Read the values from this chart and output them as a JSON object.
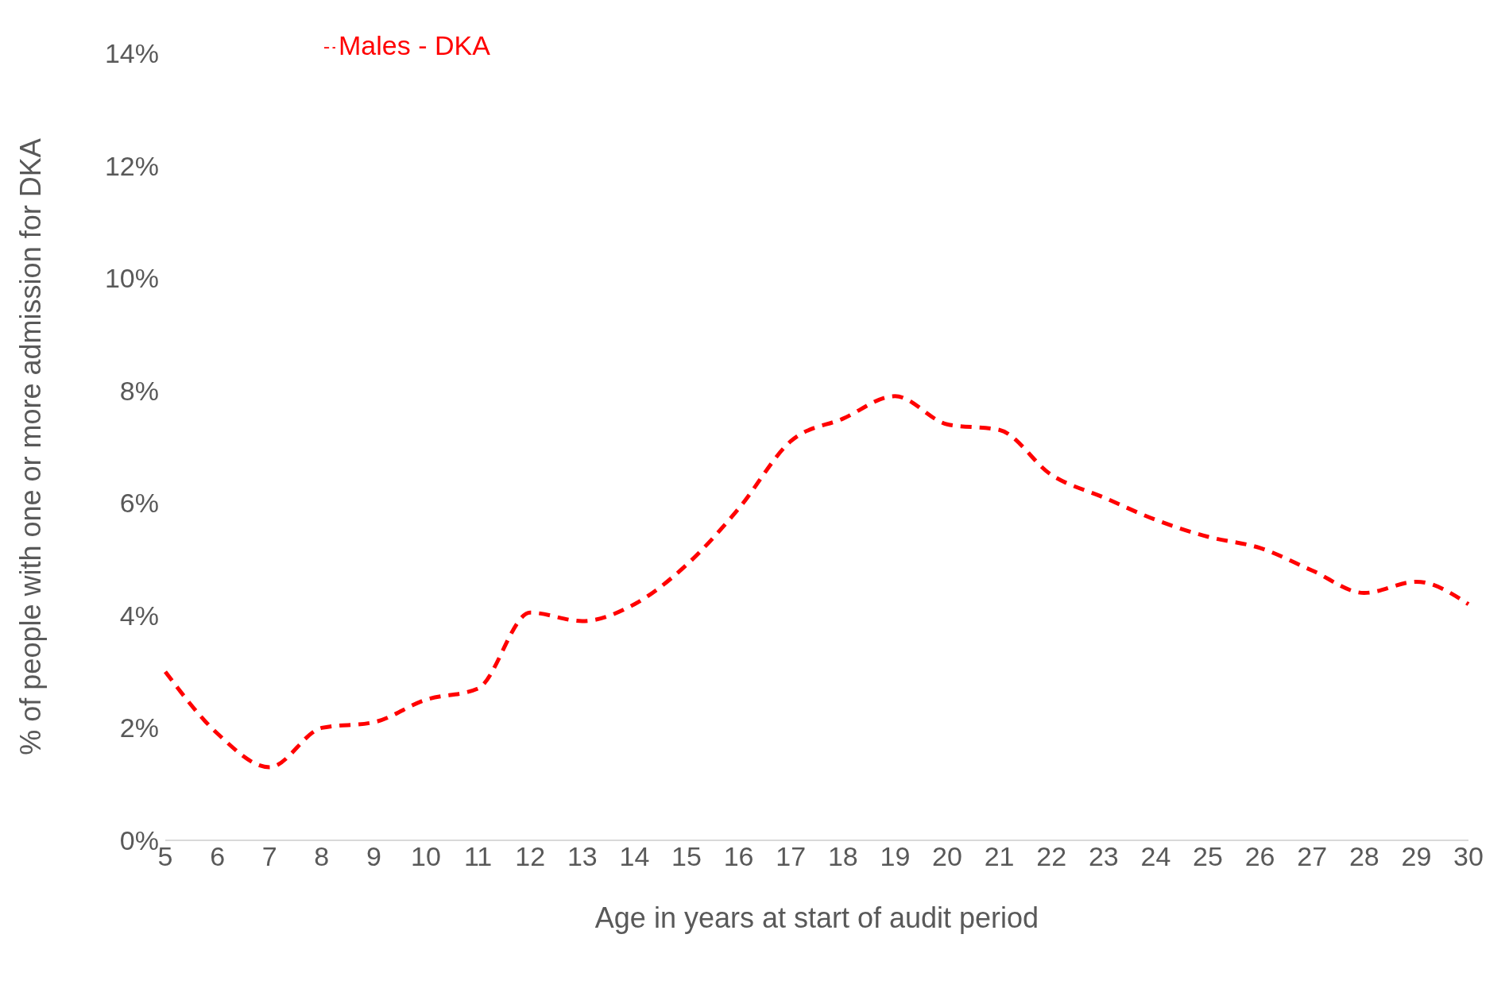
{
  "chart_data": {
    "type": "line",
    "xlabel": "Age in years at start of audit period",
    "ylabel": "% of people with one or more admission for DKA",
    "categories": [
      "5",
      "6",
      "7",
      "8",
      "9",
      "10",
      "11",
      "12",
      "13",
      "14",
      "15",
      "16",
      "17",
      "18",
      "19",
      "20",
      "21",
      "22",
      "23",
      "24",
      "25",
      "26",
      "27",
      "28",
      "29",
      "30"
    ],
    "series": [
      {
        "name": "Males - DKA",
        "color": "#ff0000",
        "values": [
          3.0,
          1.9,
          1.3,
          2.0,
          2.1,
          2.5,
          2.7,
          4.05,
          3.9,
          4.2,
          4.9,
          5.9,
          7.1,
          7.5,
          7.9,
          7.4,
          7.3,
          6.5,
          6.1,
          5.7,
          5.4,
          5.2,
          4.8,
          4.4,
          4.6,
          4.2
        ]
      }
    ],
    "ylim": [
      0,
      14
    ],
    "yticks": [
      {
        "value": 0,
        "label": "0%"
      },
      {
        "value": 2,
        "label": "2%"
      },
      {
        "value": 4,
        "label": "4%"
      },
      {
        "value": 6,
        "label": "6%"
      },
      {
        "value": 8,
        "label": "8%"
      },
      {
        "value": 10,
        "label": "10%"
      },
      {
        "value": 12,
        "label": "12%"
      },
      {
        "value": 14,
        "label": "14%"
      }
    ],
    "grid": false,
    "legend": "top left",
    "line_style": "dashed",
    "marker": "none"
  }
}
